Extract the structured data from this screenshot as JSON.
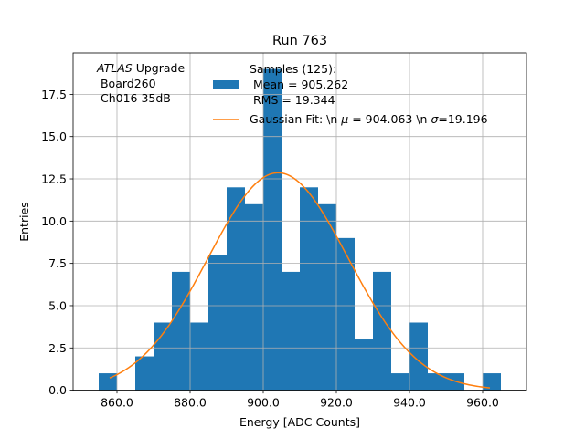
{
  "chart_data": {
    "type": "bar",
    "title": "Run 763",
    "xlabel": "Energy [ADC Counts]",
    "ylabel": "Entries",
    "xlim": [
      848,
      972
    ],
    "ylim": [
      0,
      19.95
    ],
    "grid": true,
    "x_ticks": [
      860,
      880,
      900,
      920,
      940,
      960
    ],
    "x_tick_labels": [
      "860.0",
      "880.0",
      "900.0",
      "920.0",
      "940.0",
      "960.0"
    ],
    "y_ticks": [
      0,
      2.5,
      5,
      7.5,
      10,
      12.5,
      15,
      17.5
    ],
    "y_tick_labels": [
      "0.0",
      "2.5",
      "5.0",
      "7.5",
      "10.0",
      "12.5",
      "15.0",
      "17.5"
    ],
    "bin_width": 5,
    "bin_left_edges": [
      855,
      860,
      865,
      870,
      875,
      880,
      885,
      890,
      895,
      900,
      905,
      910,
      915,
      920,
      925,
      930,
      935,
      940,
      945,
      950,
      955,
      960
    ],
    "values": [
      1,
      0,
      2,
      4,
      7,
      4,
      8,
      12,
      11,
      19,
      7,
      12,
      11,
      9,
      3,
      7,
      1,
      4,
      1,
      1,
      0,
      1
    ],
    "bar_color": "#1f77b4",
    "fit": {
      "label": "Gaussian Fit: \\n $\\mu$ = 904.063 \\n $\\sigma$=19.196",
      "label_plain": "Gaussian Fit: \\n ",
      "label_mu": "μ",
      "label_mid": " = 904.063 \\n ",
      "label_sigma": "σ",
      "label_end": "=19.196",
      "mu": 904.063,
      "sigma": 19.196,
      "amplitude": 12.86,
      "x_range": [
        858,
        962
      ],
      "color": "#ff7f0e"
    },
    "legend": {
      "placement": "upper-center",
      "samples_lines": [
        "Samples (125):",
        " Mean = 905.262",
        " RMS = 19.344"
      ]
    },
    "annotation": {
      "italic": "ATLAS",
      "rest": " Upgrade",
      "lines": [
        " Board260",
        " Ch016 35dB"
      ]
    }
  }
}
